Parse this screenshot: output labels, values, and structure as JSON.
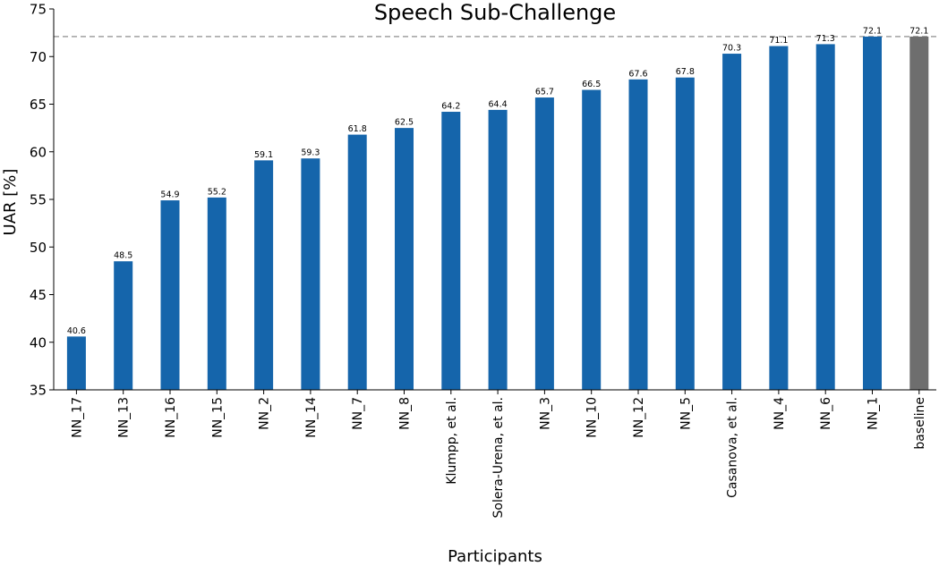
{
  "chart_data": {
    "type": "bar",
    "title": "Speech Sub-Challenge",
    "xlabel": "Participants",
    "ylabel": "UAR [%]",
    "ylim": [
      35,
      75
    ],
    "yticks": [
      35,
      40,
      45,
      50,
      55,
      60,
      65,
      70,
      75
    ],
    "reference_line": {
      "value": 72.1,
      "style": "dashed"
    },
    "categories": [
      "NN_17",
      "NN_13",
      "NN_16",
      "NN_15",
      "NN_2",
      "NN_14",
      "NN_7",
      "NN_8",
      "Klumpp, et al.",
      "Solera-Urena, et al.",
      "NN_3",
      "NN_10",
      "NN_12",
      "NN_5",
      "Casanova, et al.",
      "NN_4",
      "NN_6",
      "NN_1",
      "baseline"
    ],
    "values": [
      40.6,
      48.5,
      54.9,
      55.2,
      59.1,
      59.3,
      61.8,
      62.5,
      64.2,
      64.4,
      65.7,
      66.5,
      67.6,
      67.8,
      70.3,
      71.1,
      71.3,
      72.1,
      72.1
    ],
    "colors": {
      "participant": "#1565ab",
      "baseline": "#6e6e6e",
      "reference_line": "#a0a0a0"
    },
    "grid": false
  }
}
